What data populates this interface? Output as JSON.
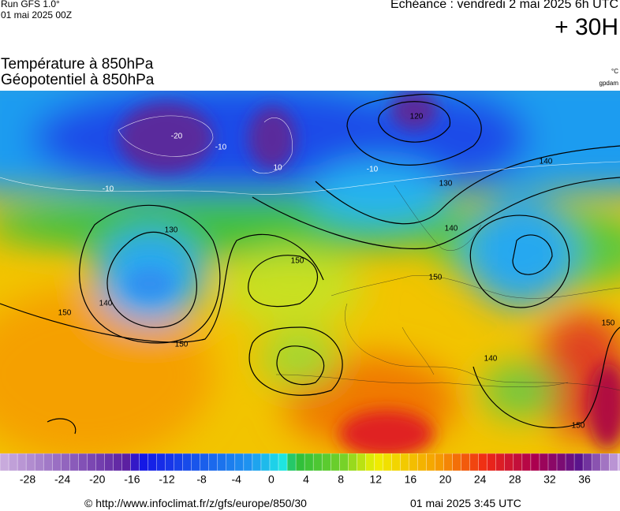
{
  "header": {
    "run": "Run GFS 1.0°",
    "date": "01 mai 2025 00Z",
    "echeance": "Echéance : vendredi 2 mai 2025 6h UTC",
    "horizon": "+ 30H"
  },
  "titles": [
    "Température à 850hPa",
    "Géopotentiel à 850hPa"
  ],
  "units": {
    "temperature": "°C",
    "geopotential": "gpdam"
  },
  "map": {
    "contour_labels": [
      130,
      140,
      150,
      150,
      150,
      150,
      140,
      140,
      130,
      120,
      140,
      150,
      150,
      -10,
      -10,
      -20,
      10,
      -10
    ]
  },
  "scale": {
    "ticks": [
      -28,
      -24,
      -20,
      -16,
      -12,
      -8,
      -4,
      0,
      4,
      8,
      12,
      16,
      20,
      24,
      28,
      32,
      36
    ]
  },
  "footer": {
    "url": "© http://www.infoclimat.fr/z/gfs/europe/850/30",
    "timestamp": "01 mai 2025  3:45 UTC"
  }
}
